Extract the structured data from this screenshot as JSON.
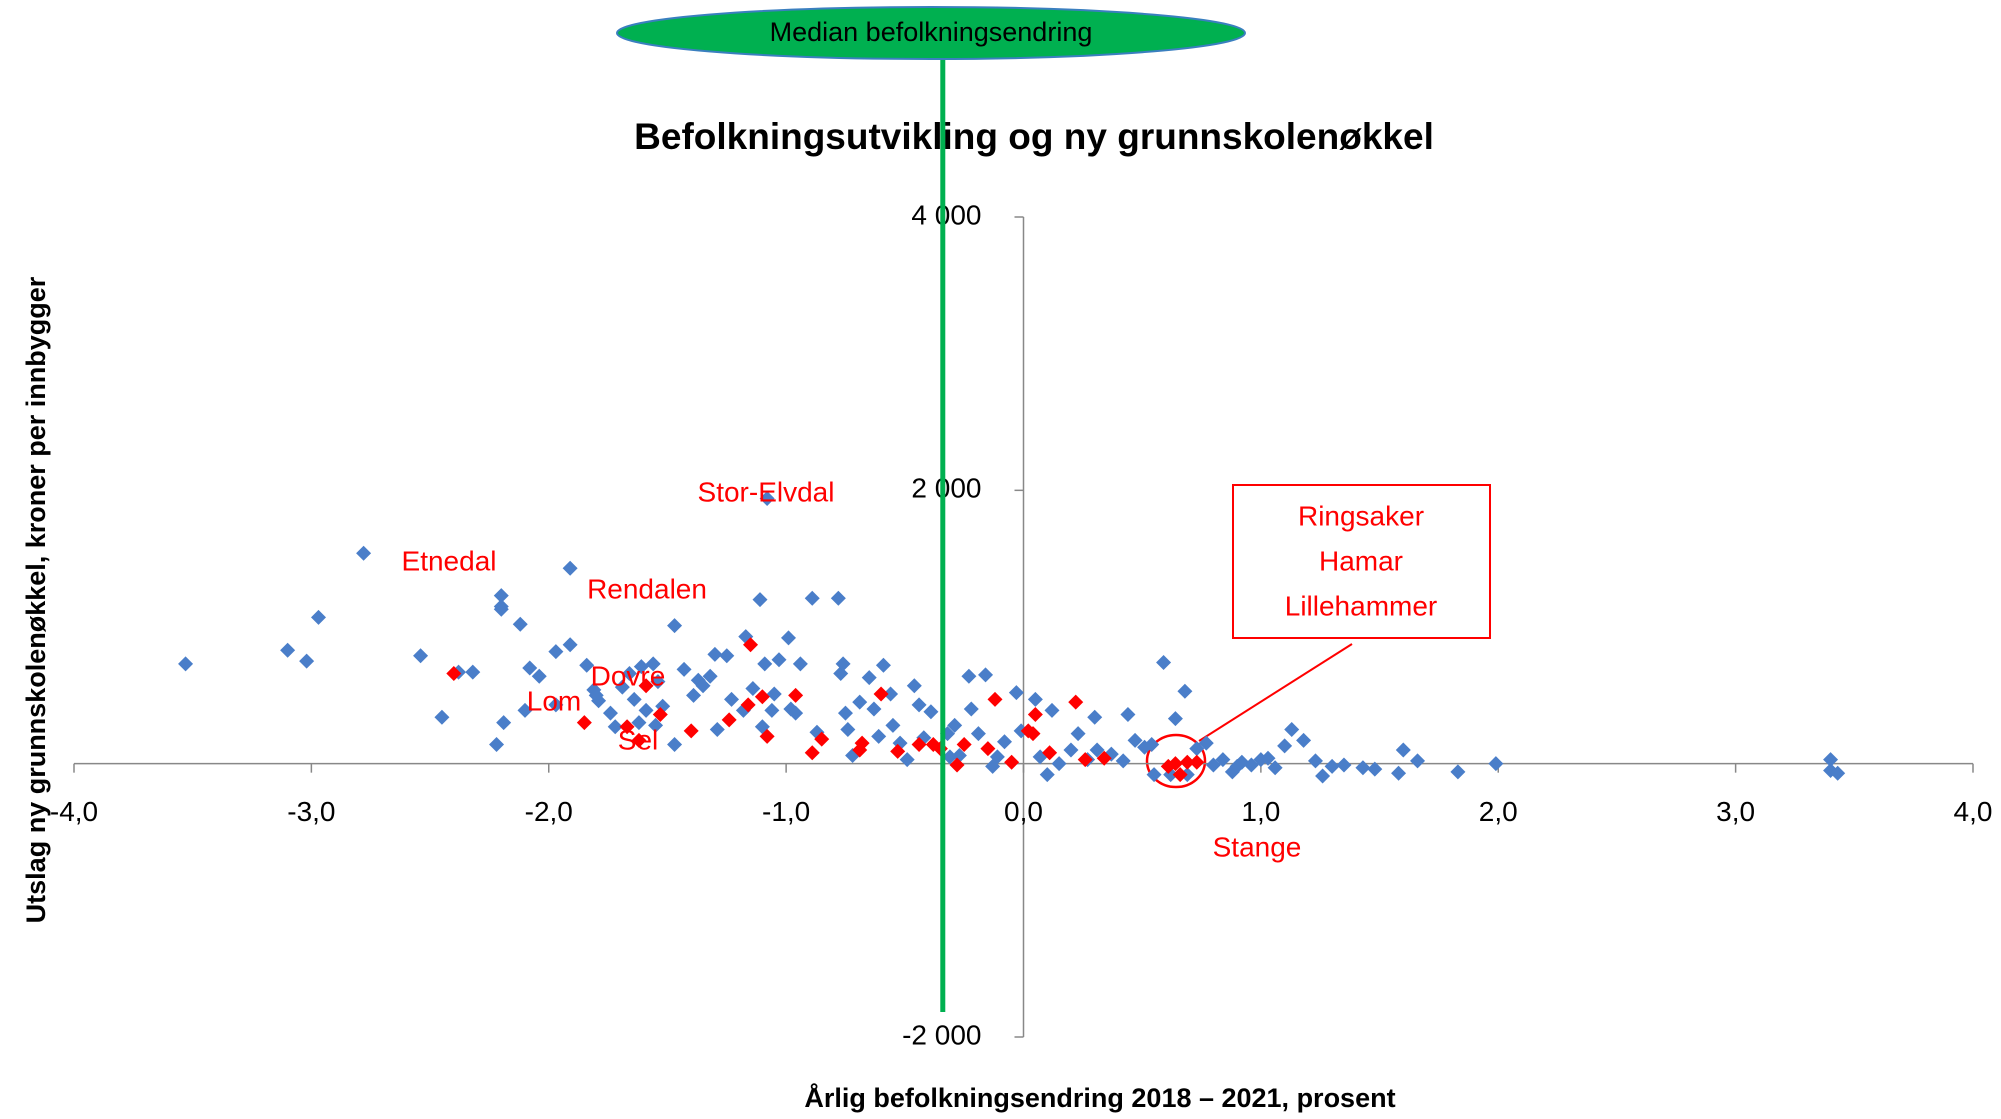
{
  "chart_data": {
    "type": "scatter",
    "title": "Befolkningsutvikling og ny grunnskolenøkkel",
    "x_label": "Årlig befolkningsendring 2018 – 2021, prosent",
    "y_label": "Utslag ny grunnskolenøkkel, kroner per innbygger",
    "xlim": [
      -4,
      4
    ],
    "ylim": [
      -2000,
      4000
    ],
    "xticks": [
      {
        "value": -4,
        "label": "-4,0"
      },
      {
        "value": -3,
        "label": "-3,0"
      },
      {
        "value": -2,
        "label": "-2,0"
      },
      {
        "value": -1,
        "label": "-1,0"
      },
      {
        "value": 0,
        "label": "0,0"
      },
      {
        "value": 1,
        "label": "1,0"
      },
      {
        "value": 2,
        "label": "2,0"
      },
      {
        "value": 3,
        "label": "3,0"
      },
      {
        "value": 4,
        "label": "4,0"
      }
    ],
    "yticks": [
      {
        "value": -2000,
        "label": "-2 000"
      },
      {
        "value": 2000,
        "label": "2 000"
      },
      {
        "value": 4000,
        "label": "4 000"
      }
    ],
    "median": {
      "x": -0.34,
      "label": "Median befolkningsendring",
      "color": "#00b050"
    },
    "annotations": [
      "Etnedal",
      "Stor-Elvdal",
      "Rendalen",
      "Dovre",
      "Lom",
      "Sel",
      "Stange"
    ],
    "callout": [
      "Ringsaker",
      "Hamar",
      "Lillehammer"
    ],
    "series": [
      {
        "color": "#4a7ec9",
        "x": [
          -3.53,
          -3.1,
          -3.02,
          -2.97,
          -2.78,
          -2.54,
          -2.45,
          -2.32,
          -2.38,
          -2.2,
          -2.2,
          -2.2,
          -2.19,
          -2.22,
          -2.12,
          -2.08,
          -2.1,
          -2.04,
          -1.97,
          -1.97,
          -1.91,
          -1.91,
          -1.84,
          -1.81,
          -1.8,
          -1.79,
          -1.74,
          -1.72,
          -1.69,
          -1.66,
          -1.64,
          -1.62,
          -1.61,
          -1.59,
          -1.56,
          -1.54,
          -1.52,
          -1.55,
          -1.47,
          -1.47,
          -1.43,
          -1.39,
          -1.37,
          -1.35,
          -1.32,
          -1.3,
          -1.29,
          -1.25,
          -1.23,
          -1.18,
          -1.17,
          -1.14,
          -1.11,
          -1.1,
          -1.08,
          -1.09,
          -1.05,
          -1.06,
          -1.03,
          -0.99,
          -0.98,
          -0.96,
          -0.94,
          -0.89,
          -0.87,
          -0.78,
          -0.77,
          -0.76,
          -0.75,
          -0.74,
          -0.72,
          -0.69,
          -0.65,
          -0.63,
          -0.61,
          -0.59,
          -0.56,
          -0.55,
          -0.52,
          -0.49,
          -0.46,
          -0.44,
          -0.42,
          -0.39,
          -0.32,
          -0.31,
          -0.29,
          -0.27,
          -0.23,
          -0.22,
          -0.19,
          -0.16,
          -0.13,
          -0.11,
          -0.08,
          -0.03,
          -0.01,
          0.05,
          0.07,
          0.1,
          0.12,
          0.15,
          0.2,
          0.23,
          0.27,
          0.3,
          0.31,
          0.37,
          0.42,
          0.44,
          0.47,
          0.51,
          0.54,
          0.55,
          0.59,
          0.62,
          0.64,
          0.68,
          0.69,
          0.73,
          0.77,
          0.8,
          0.84,
          0.88,
          0.9,
          0.92,
          0.96,
          1.0,
          1.03,
          1.06,
          1.1,
          1.13,
          1.18,
          1.23,
          1.26,
          1.3,
          1.35,
          1.43,
          1.48,
          1.58,
          1.6,
          1.66,
          1.83,
          1.99,
          3.4,
          3.4,
          3.43
        ],
        "values": [
          730,
          830,
          750,
          1070,
          1540,
          790,
          340,
          670,
          670,
          1230,
          1150,
          1130,
          300,
          140,
          1020,
          700,
          390,
          640,
          820,
          430,
          1430,
          870,
          720,
          540,
          500,
          460,
          370,
          270,
          560,
          660,
          470,
          300,
          710,
          390,
          730,
          600,
          420,
          280,
          1010,
          140,
          690,
          500,
          610,
          570,
          640,
          800,
          250,
          790,
          470,
          390,
          930,
          550,
          1200,
          270,
          1940,
          730,
          510,
          390,
          760,
          920,
          400,
          370,
          730,
          1210,
          230,
          1210,
          660,
          730,
          370,
          250,
          60,
          450,
          630,
          400,
          200,
          720,
          510,
          280,
          150,
          30,
          570,
          430,
          190,
          380,
          220,
          50,
          280,
          60,
          640,
          400,
          220,
          650,
          -20,
          50,
          160,
          520,
          240,
          470,
          50,
          -80,
          390,
          0,
          100,
          220,
          30,
          340,
          100,
          70,
          20,
          360,
          170,
          120,
          140,
          -80,
          740,
          -80,
          330,
          530,
          -80,
          110,
          150,
          -10,
          30,
          -60,
          -20,
          10,
          -10,
          30,
          40,
          -30,
          130,
          250,
          170,
          20,
          -90,
          -20,
          -10,
          -30,
          -40,
          -70,
          100,
          20,
          -60,
          0,
          30,
          -50,
          -70
        ]
      },
      {
        "color": "#ff0000",
        "x": [
          -2.4,
          -1.85,
          -1.67,
          -1.62,
          -1.59,
          -1.53,
          -1.4,
          -1.24,
          -1.16,
          -1.15,
          -1.1,
          -1.08,
          -0.96,
          -0.89,
          -0.85,
          -0.69,
          -0.68,
          -0.6,
          -0.53,
          -0.44,
          -0.38,
          -0.35,
          -0.28,
          -0.25,
          -0.15,
          -0.12,
          -0.05,
          0.02,
          0.04,
          0.05,
          0.11,
          0.22,
          0.26,
          0.34,
          0.61,
          0.64,
          0.66,
          0.69,
          0.73
        ],
        "values": [
          660,
          300,
          270,
          170,
          570,
          360,
          240,
          320,
          430,
          870,
          490,
          200,
          500,
          80,
          180,
          100,
          150,
          510,
          90,
          140,
          140,
          110,
          -10,
          140,
          110,
          470,
          10,
          240,
          220,
          360,
          80,
          450,
          30,
          40,
          -20,
          0,
          -80,
          10,
          10
        ]
      }
    ]
  }
}
